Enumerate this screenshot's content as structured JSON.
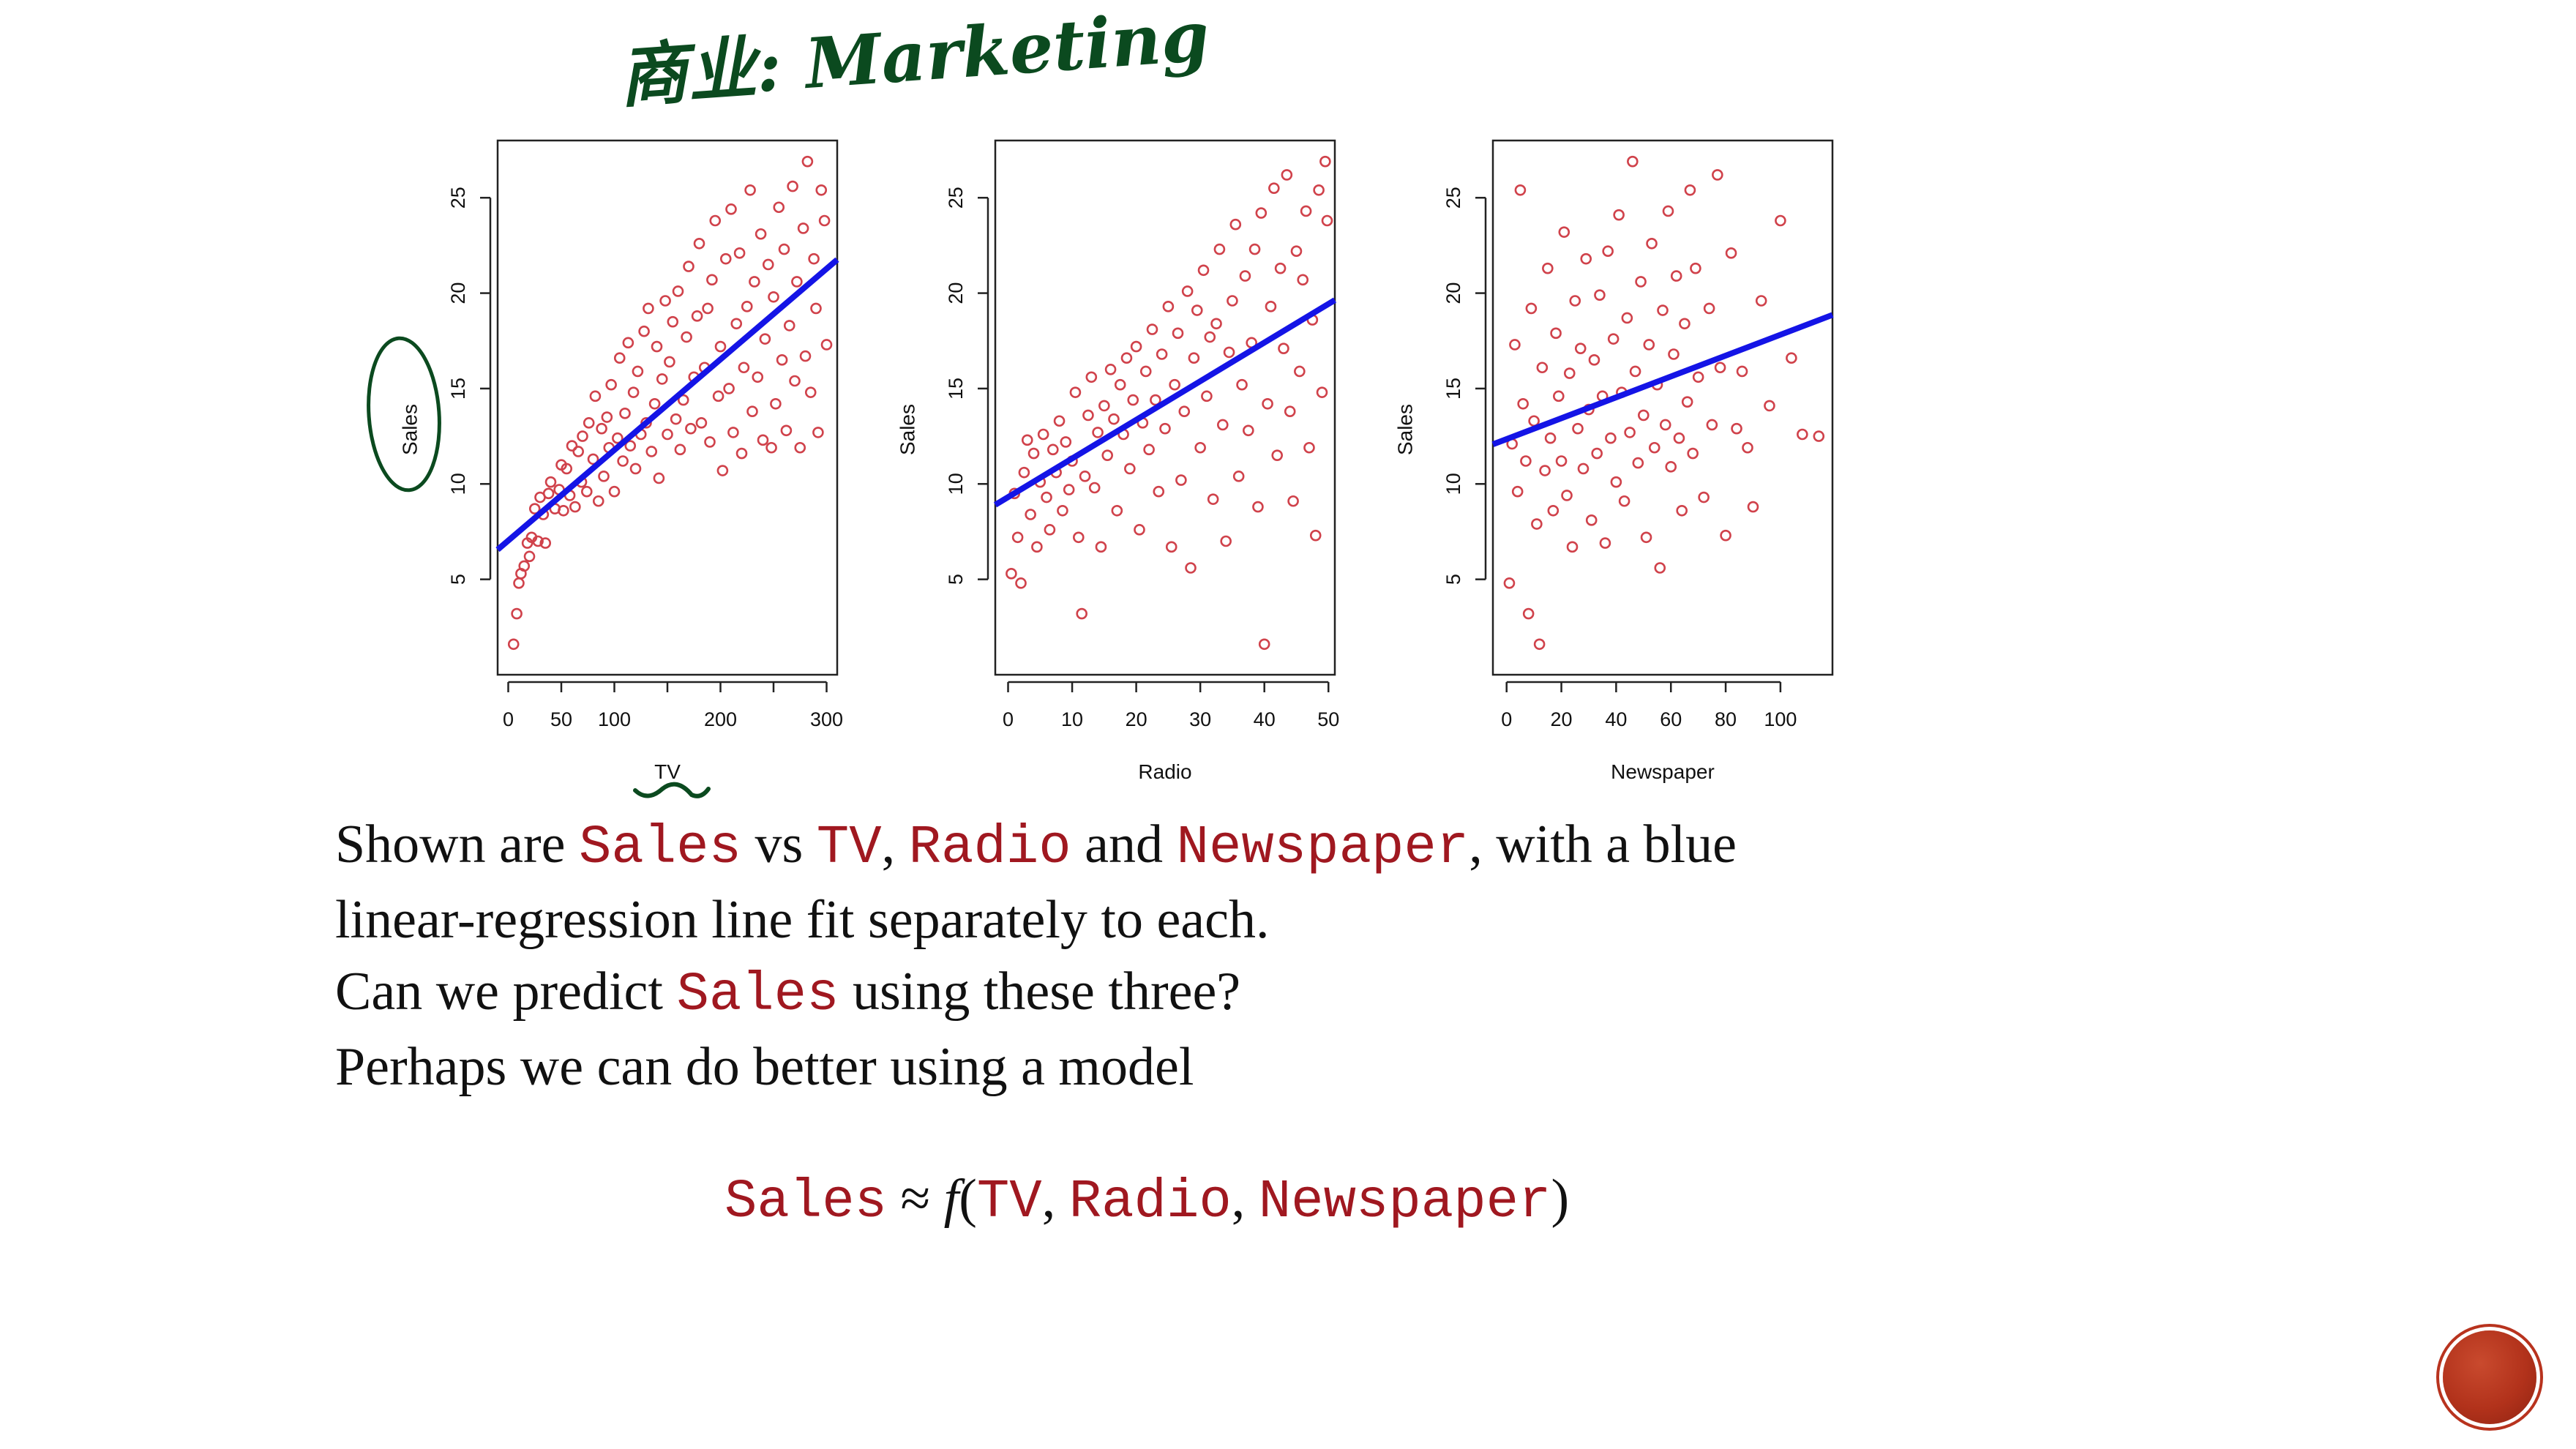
{
  "annotation": {
    "handwritten_title": "商业: Marketing"
  },
  "paragraph": {
    "line1": {
      "prefix": "Shown are ",
      "sales": "Sales",
      "vs": " vs ",
      "tv": "TV",
      "comma": ", ",
      "radio": "Radio",
      "and": " and ",
      "newspaper": "Newspaper",
      "suffix": ", with a blue"
    },
    "line2": "linear-regression line fit separately to each.",
    "line3": {
      "prefix": "Can we predict ",
      "sales": "Sales",
      "suffix": " using these three?"
    },
    "line4": "Perhaps we can do better using a model"
  },
  "formula": {
    "sales": "Sales",
    "approx": " ≈ ",
    "f": "f",
    "open": "(",
    "tv": "TV",
    "c1": ", ",
    "radio": "Radio",
    "c2": ", ",
    "newspaper": "Newspaper",
    "close": ")"
  },
  "colors": {
    "points": "#d0424b",
    "line": "#1414e6",
    "code": "#a01820",
    "ink": "#0b4a1f"
  },
  "chart_data": [
    {
      "type": "scatter",
      "xlabel": "TV",
      "ylabel": "Sales",
      "xlim": [
        -10,
        310
      ],
      "ylim": [
        0,
        28
      ],
      "xticks": [
        0,
        50,
        100,
        150,
        200,
        250,
        300
      ],
      "xtick_labels": [
        "0",
        "50",
        "100",
        "",
        "200",
        "",
        "300"
      ],
      "yticks": [
        5,
        10,
        15,
        20,
        25
      ],
      "fit": {
        "intercept": 7.03,
        "slope": 0.0475
      },
      "points": [
        [
          5,
          1.6
        ],
        [
          8,
          3.2
        ],
        [
          10,
          4.8
        ],
        [
          12,
          5.3
        ],
        [
          15,
          5.7
        ],
        [
          18,
          6.9
        ],
        [
          20,
          6.2
        ],
        [
          22,
          7.2
        ],
        [
          25,
          8.7
        ],
        [
          28,
          7.0
        ],
        [
          30,
          9.3
        ],
        [
          33,
          8.4
        ],
        [
          35,
          6.9
        ],
        [
          38,
          9.5
        ],
        [
          40,
          10.1
        ],
        [
          44,
          8.7
        ],
        [
          48,
          9.7
        ],
        [
          50,
          11.0
        ],
        [
          52,
          8.6
        ],
        [
          55,
          10.8
        ],
        [
          58,
          9.4
        ],
        [
          60,
          12.0
        ],
        [
          63,
          8.8
        ],
        [
          66,
          11.7
        ],
        [
          69,
          10.1
        ],
        [
          70,
          12.5
        ],
        [
          74,
          9.6
        ],
        [
          76,
          13.2
        ],
        [
          80,
          11.3
        ],
        [
          82,
          14.6
        ],
        [
          85,
          9.1
        ],
        [
          88,
          12.9
        ],
        [
          90,
          10.4
        ],
        [
          93,
          13.5
        ],
        [
          95,
          11.9
        ],
        [
          97,
          15.2
        ],
        [
          100,
          9.6
        ],
        [
          103,
          12.4
        ],
        [
          105,
          16.6
        ],
        [
          108,
          11.2
        ],
        [
          110,
          13.7
        ],
        [
          113,
          17.4
        ],
        [
          115,
          12.0
        ],
        [
          118,
          14.8
        ],
        [
          120,
          10.8
        ],
        [
          122,
          15.9
        ],
        [
          125,
          12.6
        ],
        [
          128,
          18.0
        ],
        [
          130,
          13.2
        ],
        [
          132,
          19.2
        ],
        [
          135,
          11.7
        ],
        [
          138,
          14.2
        ],
        [
          140,
          17.2
        ],
        [
          142,
          10.3
        ],
        [
          145,
          15.5
        ],
        [
          148,
          19.6
        ],
        [
          150,
          12.6
        ],
        [
          152,
          16.4
        ],
        [
          155,
          18.5
        ],
        [
          158,
          13.4
        ],
        [
          160,
          20.1
        ],
        [
          162,
          11.8
        ],
        [
          165,
          14.4
        ],
        [
          168,
          17.7
        ],
        [
          170,
          21.4
        ],
        [
          172,
          12.9
        ],
        [
          175,
          15.6
        ],
        [
          178,
          18.8
        ],
        [
          180,
          22.6
        ],
        [
          182,
          13.2
        ],
        [
          185,
          16.1
        ],
        [
          188,
          19.2
        ],
        [
          190,
          12.2
        ],
        [
          192,
          20.7
        ],
        [
          195,
          23.8
        ],
        [
          198,
          14.6
        ],
        [
          200,
          17.2
        ],
        [
          202,
          10.7
        ],
        [
          205,
          21.8
        ],
        [
          208,
          15.0
        ],
        [
          210,
          24.4
        ],
        [
          212,
          12.7
        ],
        [
          215,
          18.4
        ],
        [
          218,
          22.1
        ],
        [
          220,
          11.6
        ],
        [
          222,
          16.1
        ],
        [
          225,
          19.3
        ],
        [
          228,
          25.4
        ],
        [
          230,
          13.8
        ],
        [
          232,
          20.6
        ],
        [
          235,
          15.6
        ],
        [
          238,
          23.1
        ],
        [
          240,
          12.3
        ],
        [
          242,
          17.6
        ],
        [
          245,
          21.5
        ],
        [
          248,
          11.9
        ],
        [
          250,
          19.8
        ],
        [
          252,
          14.2
        ],
        [
          255,
          24.5
        ],
        [
          258,
          16.5
        ],
        [
          260,
          22.3
        ],
        [
          262,
          12.8
        ],
        [
          265,
          18.3
        ],
        [
          268,
          25.6
        ],
        [
          270,
          15.4
        ],
        [
          272,
          20.6
        ],
        [
          275,
          11.9
        ],
        [
          278,
          23.4
        ],
        [
          280,
          16.7
        ],
        [
          282,
          26.9
        ],
        [
          285,
          14.8
        ],
        [
          288,
          21.8
        ],
        [
          290,
          19.2
        ],
        [
          292,
          12.7
        ],
        [
          295,
          25.4
        ],
        [
          298,
          23.8
        ],
        [
          300,
          17.3
        ]
      ]
    },
    {
      "type": "scatter",
      "xlabel": "Radio",
      "ylabel": "Sales",
      "xlim": [
        -2,
        51
      ],
      "ylim": [
        0,
        28
      ],
      "xticks": [
        0,
        10,
        20,
        30,
        40,
        50
      ],
      "xtick_labels": [
        "0",
        "10",
        "20",
        "30",
        "40",
        "50"
      ],
      "yticks": [
        5,
        10,
        15,
        20,
        25
      ],
      "fit": {
        "intercept": 9.31,
        "slope": 0.2025
      },
      "points": [
        [
          0.5,
          5.3
        ],
        [
          1,
          9.5
        ],
        [
          1.5,
          7.2
        ],
        [
          2,
          4.8
        ],
        [
          2.5,
          10.6
        ],
        [
          3,
          12.3
        ],
        [
          3.5,
          8.4
        ],
        [
          4,
          11.6
        ],
        [
          4.5,
          6.7
        ],
        [
          5,
          10.1
        ],
        [
          5.5,
          12.6
        ],
        [
          6,
          9.3
        ],
        [
          6.5,
          7.6
        ],
        [
          7,
          11.8
        ],
        [
          7.5,
          10.6
        ],
        [
          8,
          13.3
        ],
        [
          8.5,
          8.6
        ],
        [
          9,
          12.2
        ],
        [
          9.5,
          9.7
        ],
        [
          10,
          11.2
        ],
        [
          10.5,
          14.8
        ],
        [
          11,
          7.2
        ],
        [
          11.5,
          3.2
        ],
        [
          12,
          10.4
        ],
        [
          12.5,
          13.6
        ],
        [
          13,
          15.6
        ],
        [
          13.5,
          9.8
        ],
        [
          14,
          12.7
        ],
        [
          14.5,
          6.7
        ],
        [
          15,
          14.1
        ],
        [
          15.5,
          11.5
        ],
        [
          16,
          16.0
        ],
        [
          16.5,
          13.4
        ],
        [
          17,
          8.6
        ],
        [
          17.5,
          15.2
        ],
        [
          18,
          12.6
        ],
        [
          18.5,
          16.6
        ],
        [
          19,
          10.8
        ],
        [
          19.5,
          14.4
        ],
        [
          20,
          17.2
        ],
        [
          20.5,
          7.6
        ],
        [
          21,
          13.2
        ],
        [
          21.5,
          15.9
        ],
        [
          22,
          11.8
        ],
        [
          22.5,
          18.1
        ],
        [
          23,
          14.4
        ],
        [
          23.5,
          9.6
        ],
        [
          24,
          16.8
        ],
        [
          24.5,
          12.9
        ],
        [
          25,
          19.3
        ],
        [
          25.5,
          6.7
        ],
        [
          26,
          15.2
        ],
        [
          26.5,
          17.9
        ],
        [
          27,
          10.2
        ],
        [
          27.5,
          13.8
        ],
        [
          28,
          20.1
        ],
        [
          28.5,
          5.6
        ],
        [
          29,
          16.6
        ],
        [
          29.5,
          19.1
        ],
        [
          30,
          11.9
        ],
        [
          30.5,
          21.2
        ],
        [
          31,
          14.6
        ],
        [
          31.5,
          17.7
        ],
        [
          32,
          9.2
        ],
        [
          32.5,
          18.4
        ],
        [
          33,
          22.3
        ],
        [
          33.5,
          13.1
        ],
        [
          34,
          7.0
        ],
        [
          34.5,
          16.9
        ],
        [
          35,
          19.6
        ],
        [
          35.5,
          23.6
        ],
        [
          36,
          10.4
        ],
        [
          36.5,
          15.2
        ],
        [
          37,
          20.9
        ],
        [
          37.5,
          12.8
        ],
        [
          38,
          17.4
        ],
        [
          38.5,
          22.3
        ],
        [
          39,
          8.8
        ],
        [
          39.5,
          24.2
        ],
        [
          40,
          1.6
        ],
        [
          40.5,
          14.2
        ],
        [
          41,
          19.3
        ],
        [
          41.5,
          25.5
        ],
        [
          42,
          11.5
        ],
        [
          42.5,
          21.3
        ],
        [
          43,
          17.1
        ],
        [
          43.5,
          26.2
        ],
        [
          44,
          13.8
        ],
        [
          44.5,
          9.1
        ],
        [
          45,
          22.2
        ],
        [
          45.5,
          15.9
        ],
        [
          46,
          20.7
        ],
        [
          46.5,
          24.3
        ],
        [
          47,
          11.9
        ],
        [
          47.5,
          18.6
        ],
        [
          48,
          7.3
        ],
        [
          48.5,
          25.4
        ],
        [
          49,
          14.8
        ],
        [
          49.5,
          26.9
        ],
        [
          49.8,
          23.8
        ]
      ]
    },
    {
      "type": "scatter",
      "xlabel": "Newspaper",
      "ylabel": "Sales",
      "xlim": [
        -5,
        119
      ],
      "ylim": [
        0,
        28
      ],
      "xticks": [
        0,
        20,
        40,
        60,
        80,
        100
      ],
      "xtick_labels": [
        "0",
        "20",
        "40",
        "60",
        "80",
        "100"
      ],
      "yticks": [
        5,
        10,
        15,
        20,
        25
      ],
      "fit": {
        "intercept": 12.35,
        "slope": 0.0547
      },
      "points": [
        [
          1,
          4.8
        ],
        [
          2,
          12.1
        ],
        [
          3,
          17.3
        ],
        [
          4,
          9.6
        ],
        [
          5,
          25.4
        ],
        [
          6,
          14.2
        ],
        [
          7,
          11.2
        ],
        [
          8,
          3.2
        ],
        [
          9,
          19.2
        ],
        [
          10,
          13.3
        ],
        [
          11,
          7.9
        ],
        [
          12,
          1.6
        ],
        [
          13,
          16.1
        ],
        [
          14,
          10.7
        ],
        [
          15,
          21.3
        ],
        [
          16,
          12.4
        ],
        [
          17,
          8.6
        ],
        [
          18,
          17.9
        ],
        [
          19,
          14.6
        ],
        [
          20,
          11.2
        ],
        [
          21,
          23.2
        ],
        [
          22,
          9.4
        ],
        [
          23,
          15.8
        ],
        [
          24,
          6.7
        ],
        [
          25,
          19.6
        ],
        [
          26,
          12.9
        ],
        [
          27,
          17.1
        ],
        [
          28,
          10.8
        ],
        [
          29,
          21.8
        ],
        [
          30,
          13.9
        ],
        [
          31,
          8.1
        ],
        [
          32,
          16.5
        ],
        [
          33,
          11.6
        ],
        [
          34,
          19.9
        ],
        [
          35,
          14.6
        ],
        [
          36,
          6.9
        ],
        [
          37,
          22.2
        ],
        [
          38,
          12.4
        ],
        [
          39,
          17.6
        ],
        [
          40,
          10.1
        ],
        [
          41,
          24.1
        ],
        [
          42,
          14.8
        ],
        [
          43,
          9.1
        ],
        [
          44,
          18.7
        ],
        [
          45,
          12.7
        ],
        [
          46,
          26.9
        ],
        [
          47,
          15.9
        ],
        [
          48,
          11.1
        ],
        [
          49,
          20.6
        ],
        [
          50,
          13.6
        ],
        [
          51,
          7.2
        ],
        [
          52,
          17.3
        ],
        [
          53,
          22.6
        ],
        [
          54,
          11.9
        ],
        [
          55,
          15.2
        ],
        [
          56,
          5.6
        ],
        [
          57,
          19.1
        ],
        [
          58,
          13.1
        ],
        [
          59,
          24.3
        ],
        [
          60,
          10.9
        ],
        [
          61,
          16.8
        ],
        [
          62,
          20.9
        ],
        [
          63,
          12.4
        ],
        [
          64,
          8.6
        ],
        [
          65,
          18.4
        ],
        [
          66,
          14.3
        ],
        [
          67,
          25.4
        ],
        [
          68,
          11.6
        ],
        [
          69,
          21.3
        ],
        [
          70,
          15.6
        ],
        [
          72,
          9.3
        ],
        [
          74,
          19.2
        ],
        [
          75,
          13.1
        ],
        [
          77,
          26.2
        ],
        [
          78,
          16.1
        ],
        [
          80,
          7.3
        ],
        [
          82,
          22.1
        ],
        [
          84,
          12.9
        ],
        [
          86,
          15.9
        ],
        [
          88,
          11.9
        ],
        [
          90,
          8.8
        ],
        [
          93,
          19.6
        ],
        [
          96,
          14.1
        ],
        [
          100,
          23.8
        ],
        [
          104,
          16.6
        ],
        [
          108,
          12.6
        ],
        [
          114,
          12.5
        ]
      ]
    }
  ]
}
